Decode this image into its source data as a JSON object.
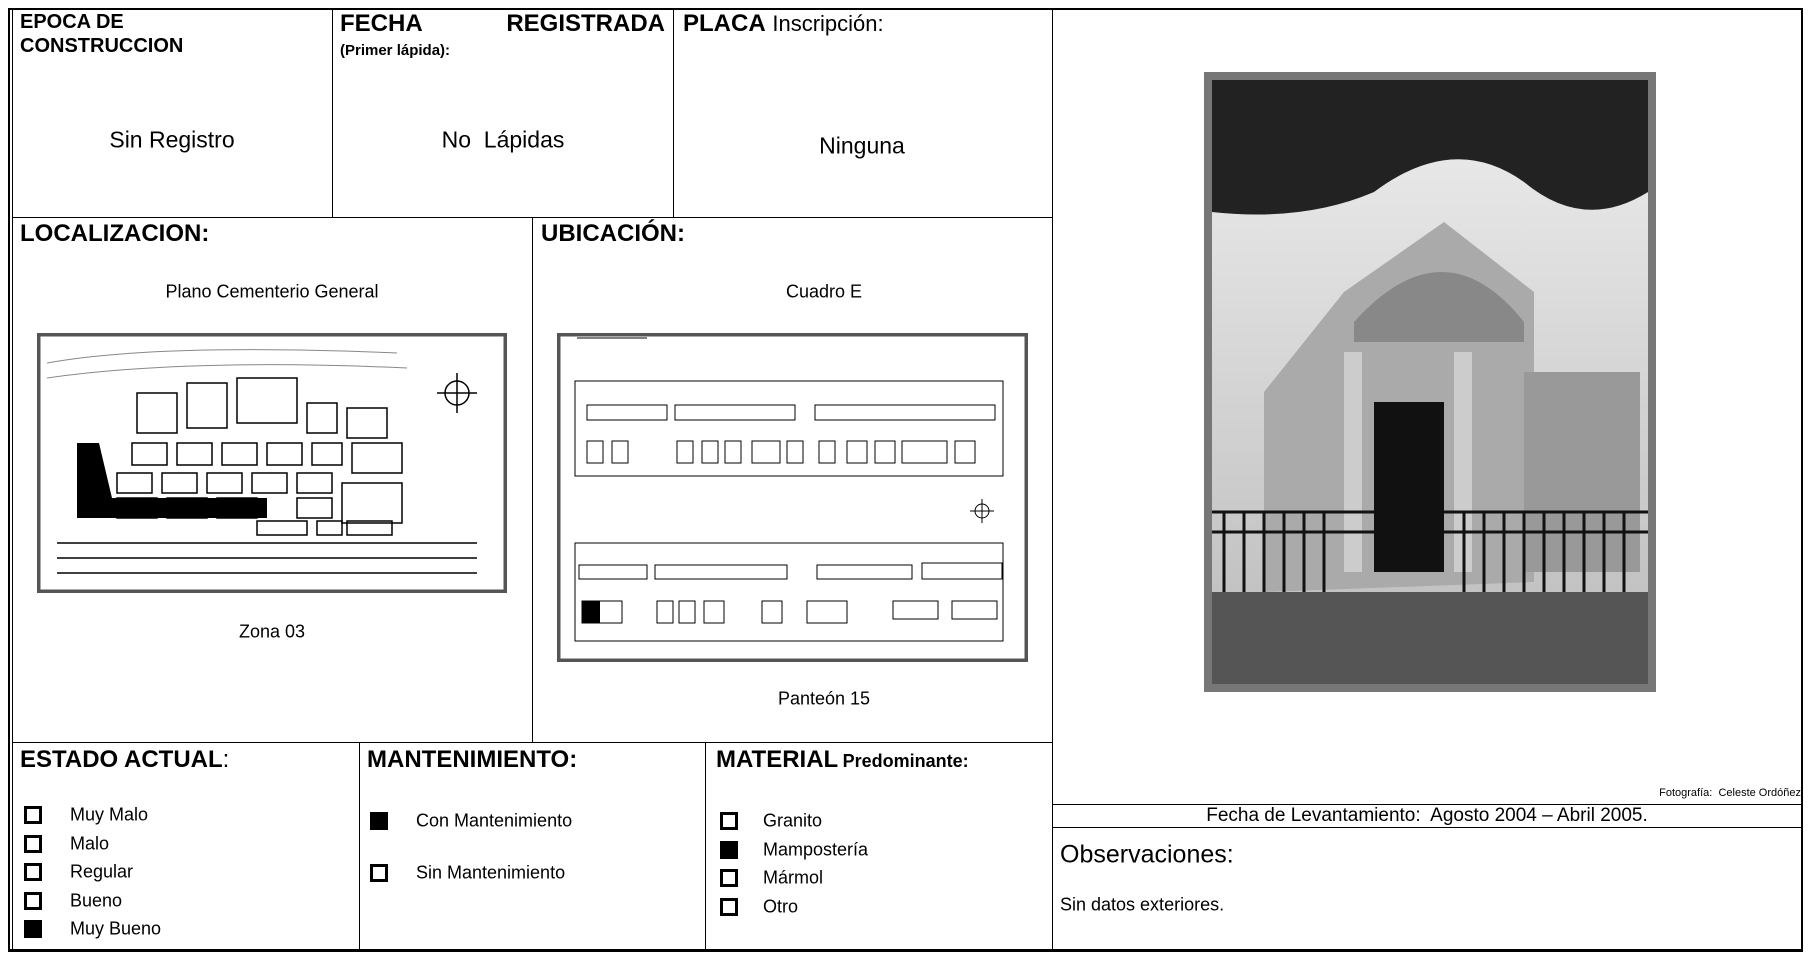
{
  "header": {
    "epoca": {
      "label": "EPOCA DE CONSTRUCCION",
      "value": "Sin Registro"
    },
    "fecha": {
      "label": "FECHA REGISTRADA",
      "sublabel": "(Primer lápida):",
      "value": "No  Lápidas"
    },
    "placa": {
      "label": "PLACA",
      "label_suffix": "Inscripción:",
      "value": "Ninguna"
    }
  },
  "localizacion": {
    "label": "LOCALIZACION:",
    "caption_top": "Plano Cementerio General",
    "caption_bottom": "Zona 03"
  },
  "ubicacion": {
    "label": "UBICACIÓN:",
    "caption_top": "Cuadro E",
    "caption_bottom": "Panteón 15"
  },
  "estado": {
    "label": "ESTADO ACTUAL",
    "label_suffix": ":",
    "options": [
      {
        "label": "Muy Malo",
        "checked": false
      },
      {
        "label": "Malo",
        "checked": false
      },
      {
        "label": "Regular",
        "checked": false
      },
      {
        "label": "Bueno",
        "checked": false
      },
      {
        "label": "Muy Bueno",
        "checked": true
      }
    ]
  },
  "mantenimiento": {
    "label": "MANTENIMIENTO:",
    "options": [
      {
        "label": "Con Mantenimiento",
        "checked": true
      },
      {
        "label": "Sin Mantenimiento",
        "checked": false
      }
    ]
  },
  "material": {
    "label": "MATERIAL",
    "label_suffix": "Predominante:",
    "options": [
      {
        "label": "Granito",
        "checked": false
      },
      {
        "label": "Mampostería",
        "checked": true
      },
      {
        "label": "Mármol",
        "checked": false
      },
      {
        "label": "Otro",
        "checked": false
      }
    ]
  },
  "foto": {
    "credit": "Fotografía:  Celeste Ordóñez"
  },
  "levantamiento": "Fecha de Levantamiento:  Agosto 2004 – Abril 2005.",
  "observaciones": {
    "label": "Observaciones:",
    "text": "Sin datos exteriores."
  }
}
